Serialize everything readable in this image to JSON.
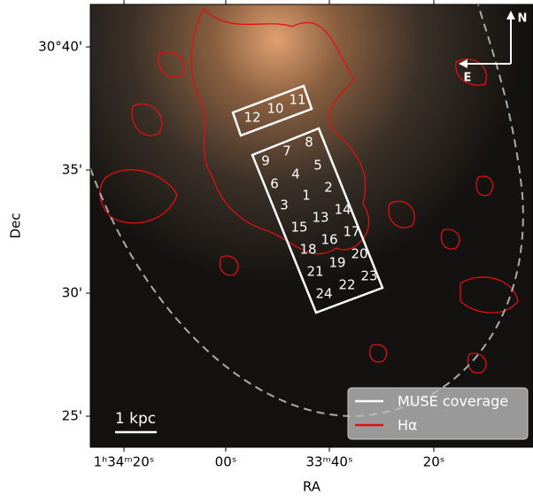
{
  "figure": {
    "x_label": "RA",
    "y_label": "Dec",
    "x_ticks": [
      "1ʰ34ᵐ20ˢ",
      "00ˢ",
      "33ᵐ40ˢ",
      "20ˢ"
    ],
    "y_ticks": [
      "30°40'",
      "35'",
      "30'",
      "25'"
    ],
    "pointings": [
      "12",
      "10",
      "11",
      "9",
      "7",
      "8",
      "5",
      "4",
      "6",
      "2",
      "1",
      "3",
      "14",
      "13",
      "15",
      "17",
      "16",
      "18",
      "20",
      "19",
      "21",
      "23",
      "22",
      "24"
    ],
    "legend": [
      "MUSE coverage",
      "Hα"
    ],
    "scale_bar": "1 kpc",
    "compass": {
      "north": "N",
      "east": "E"
    }
  }
}
